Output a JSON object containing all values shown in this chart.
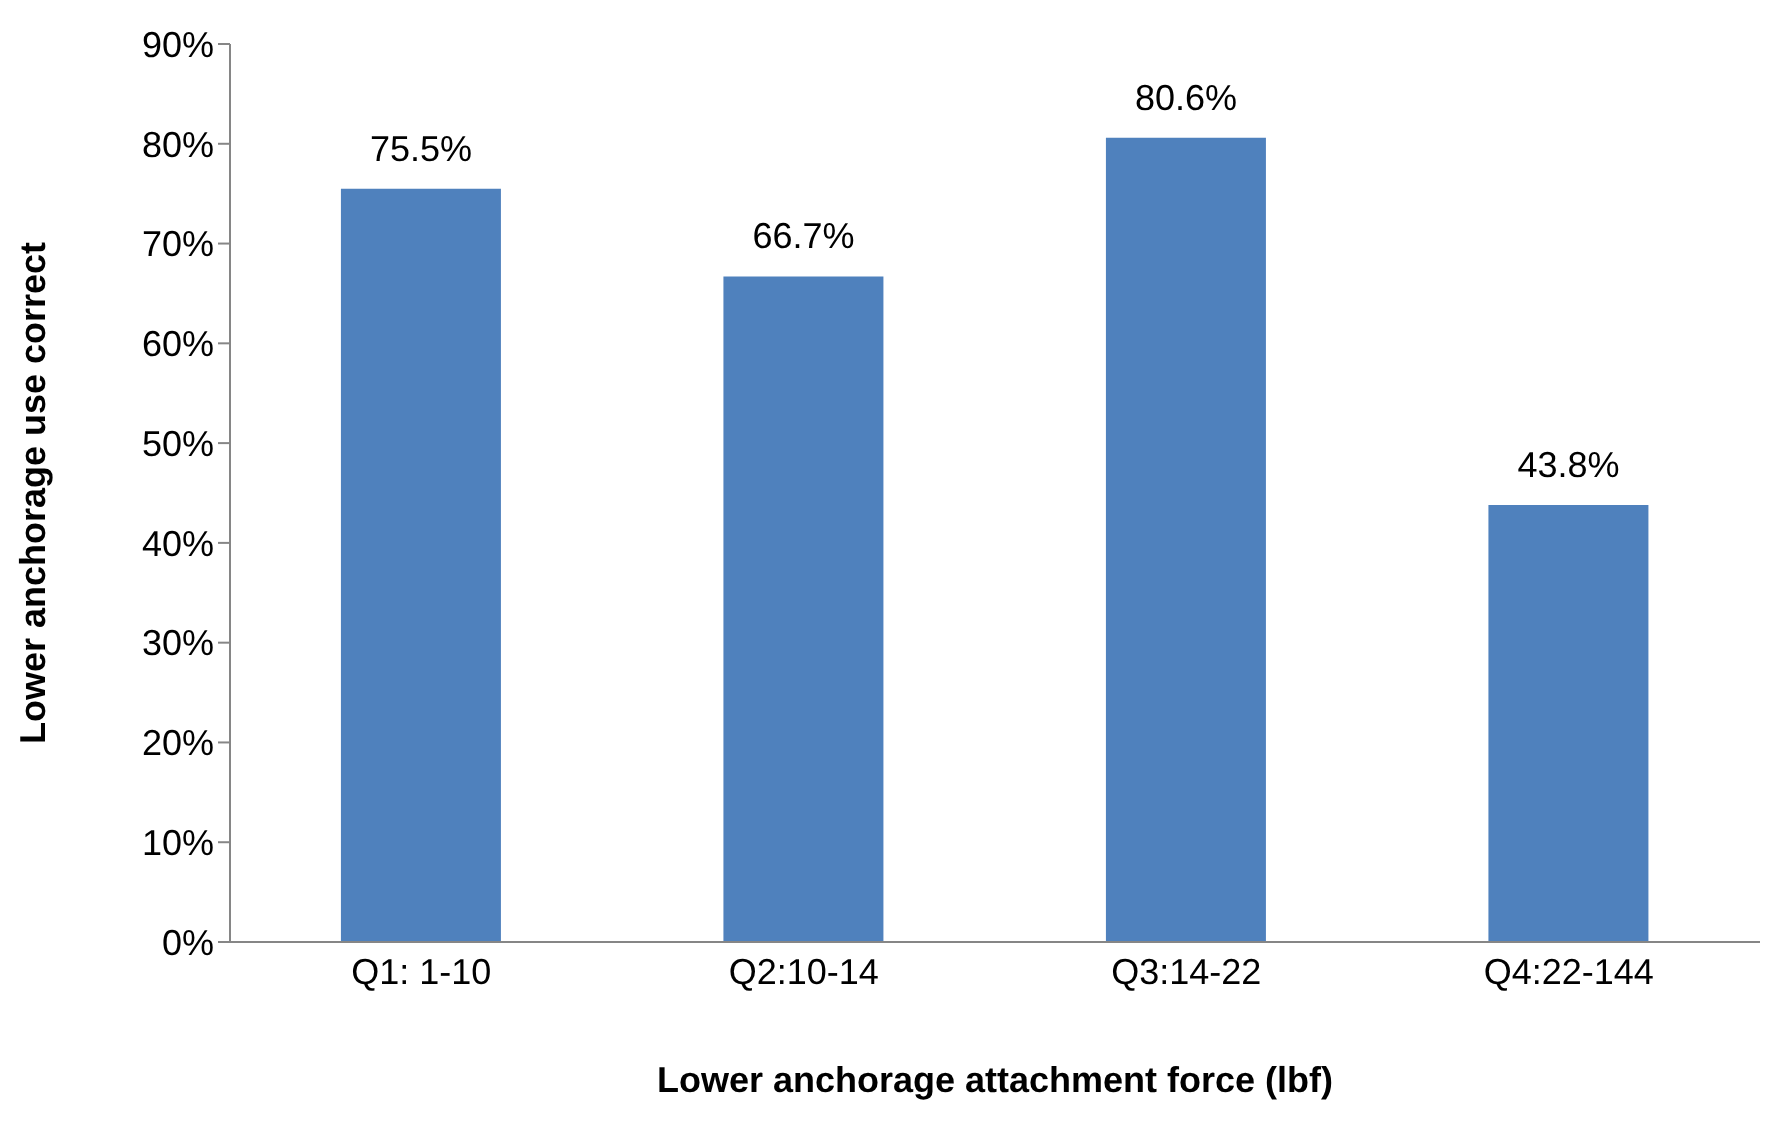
{
  "chart_data": {
    "type": "bar",
    "xlabel": "Lower anchorage attachment force (lbf)",
    "ylabel": "Lower anchorage use correct",
    "categories": [
      "Q1: 1-10",
      "Q2:10-14",
      "Q3:14-22",
      "Q4:22-144"
    ],
    "values": [
      75.5,
      66.7,
      80.6,
      43.8
    ],
    "value_labels": [
      "75.5%",
      "66.7%",
      "80.6%",
      "43.8%"
    ],
    "color": "#4f81bd",
    "ylim": [
      0,
      90
    ],
    "yticks": [
      {
        "value": 0,
        "label": "0%"
      },
      {
        "value": 10,
        "label": "10%"
      },
      {
        "value": 20,
        "label": "20%"
      },
      {
        "value": 30,
        "label": "30%"
      },
      {
        "value": 40,
        "label": "40%"
      },
      {
        "value": 50,
        "label": "50%"
      },
      {
        "value": 60,
        "label": "60%"
      },
      {
        "value": 70,
        "label": "70%"
      },
      {
        "value": 80,
        "label": "80%"
      },
      {
        "value": 90,
        "label": "90%"
      }
    ],
    "grid": false,
    "legend": false
  }
}
